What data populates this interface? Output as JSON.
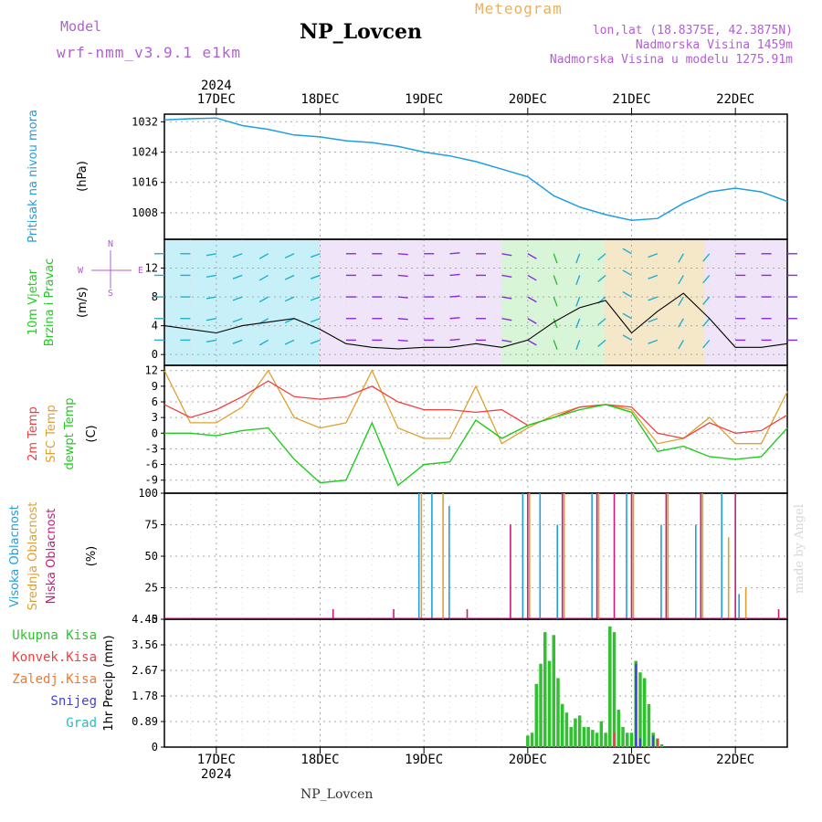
{
  "header": {
    "model_label": "Model",
    "model_name": "wrf-nmm_v3.9.1 e1km",
    "station": "NP_Lovcen",
    "product": "Meteogram",
    "lonlat": "lon,lat (18.8375E, 42.3875N)",
    "altitude": "Nadmorska Visina 1459m",
    "model_altitude": "Nadmorska Visina u modelu 1275.91m",
    "footer_station": "NP_Lovcen",
    "credit": "made by Angel"
  },
  "colors": {
    "pressure": "#1f9fe0",
    "temp2m": "#f04040",
    "sfc": "#e0a030",
    "dewpt": "#20cc20",
    "low_cloud": "#cc1a7a",
    "mid_cloud": "#e0a030",
    "high_cloud": "#1f9fe0",
    "precip_total": "#30c030",
    "precip_conv": "#f04040",
    "snow": "#4040e0"
  },
  "time_axis": {
    "year": "2024",
    "day_labels": [
      "17DEC",
      "18DEC",
      "19DEC",
      "20DEC",
      "21DEC",
      "22DEC"
    ],
    "start": "2024-12-16 12:00",
    "end": "2024-12-22 12:00"
  },
  "wind_compass": {
    "n": "N",
    "s": "S",
    "e": "E",
    "w": "W"
  },
  "chart_data": [
    {
      "type": "line",
      "panel": "pressure",
      "ylabel": [
        "Pritisak na nivou mora",
        "(hPa)"
      ],
      "yticks": [
        1008,
        1016,
        1024,
        1032
      ],
      "ylim": [
        1001,
        1034
      ],
      "grid": true,
      "series": [
        {
          "x": [
            "2024-12-16 12:00",
            "2024-12-16 18:00",
            "2024-12-17 00:00",
            "2024-12-17 06:00",
            "2024-12-17 12:00",
            "2024-12-17 18:00",
            "2024-12-18 00:00",
            "2024-12-18 06:00",
            "2024-12-18 12:00",
            "2024-12-18 18:00",
            "2024-12-19 00:00",
            "2024-12-19 06:00",
            "2024-12-19 12:00",
            "2024-12-19 18:00",
            "2024-12-20 00:00",
            "2024-12-20 06:00",
            "2024-12-20 12:00",
            "2024-12-20 18:00",
            "2024-12-21 00:00",
            "2024-12-21 06:00",
            "2024-12-21 12:00",
            "2024-12-21 18:00",
            "2024-12-22 00:00",
            "2024-12-22 06:00",
            "2024-12-22 12:00"
          ],
          "values": [
            1032.5,
            1032.8,
            1033.0,
            1031.0,
            1030.0,
            1028.5,
            1028.0,
            1027.0,
            1026.5,
            1025.5,
            1024.0,
            1023.0,
            1021.5,
            1019.5,
            1017.5,
            1012.5,
            1009.5,
            1007.5,
            1006.0,
            1006.5,
            1010.5,
            1013.5,
            1014.5,
            1013.5,
            1011.0
          ]
        }
      ]
    },
    {
      "type": "line",
      "panel": "wind",
      "ylabel": [
        "10m Vjetar",
        "Brzina i Pravac",
        "(m/s)"
      ],
      "yticks": [
        0,
        4,
        8,
        12
      ],
      "ylim": [
        -1.5,
        16
      ],
      "grid": true,
      "series": [
        {
          "name": "speed",
          "x": [
            "2024-12-16 12:00",
            "2024-12-16 18:00",
            "2024-12-17 00:00",
            "2024-12-17 06:00",
            "2024-12-17 12:00",
            "2024-12-17 18:00",
            "2024-12-18 00:00",
            "2024-12-18 06:00",
            "2024-12-18 12:00",
            "2024-12-18 18:00",
            "2024-12-19 00:00",
            "2024-12-19 06:00",
            "2024-12-19 12:00",
            "2024-12-19 18:00",
            "2024-12-20 00:00",
            "2024-12-20 06:00",
            "2024-12-20 12:00",
            "2024-12-20 18:00",
            "2024-12-21 00:00",
            "2024-12-21 06:00",
            "2024-12-21 12:00",
            "2024-12-21 18:00",
            "2024-12-22 00:00",
            "2024-12-22 06:00",
            "2024-12-22 12:00"
          ],
          "values": [
            4.0,
            3.5,
            3.0,
            4.0,
            4.5,
            5.0,
            3.5,
            1.5,
            1.0,
            0.8,
            1.0,
            1.0,
            1.5,
            1.0,
            2.0,
            4.5,
            6.5,
            7.5,
            3.0,
            6.0,
            8.5,
            5.0,
            1.0,
            1.0,
            1.5
          ]
        }
      ],
      "direction_deg": [
        270,
        270,
        260,
        250,
        240,
        245,
        250,
        90,
        90,
        95,
        90,
        85,
        90,
        100,
        120,
        160,
        200,
        230,
        300,
        250,
        210,
        220,
        90,
        90,
        90
      ]
    },
    {
      "type": "line",
      "panel": "temperature",
      "ylabel": [
        "2m Temp",
        "SFC Temp",
        "dewpt Temp",
        "(C)"
      ],
      "yticks": [
        -9,
        -6,
        -3,
        0,
        3,
        6,
        9,
        12
      ],
      "ylim": [
        -11.5,
        13
      ],
      "grid": true,
      "series": [
        {
          "name": "2m Temp",
          "x": [
            "2024-12-16 12:00",
            "2024-12-16 18:00",
            "2024-12-17 00:00",
            "2024-12-17 06:00",
            "2024-12-17 12:00",
            "2024-12-17 18:00",
            "2024-12-18 00:00",
            "2024-12-18 06:00",
            "2024-12-18 12:00",
            "2024-12-18 18:00",
            "2024-12-19 00:00",
            "2024-12-19 06:00",
            "2024-12-19 12:00",
            "2024-12-19 18:00",
            "2024-12-20 00:00",
            "2024-12-20 06:00",
            "2024-12-20 12:00",
            "2024-12-20 18:00",
            "2024-12-21 00:00",
            "2024-12-21 06:00",
            "2024-12-21 12:00",
            "2024-12-21 18:00",
            "2024-12-22 00:00",
            "2024-12-22 06:00",
            "2024-12-22 12:00"
          ],
          "values": [
            5.5,
            3.0,
            4.5,
            7.0,
            10.0,
            7.0,
            6.5,
            7.0,
            9.0,
            6.0,
            4.5,
            4.5,
            4.0,
            4.5,
            1.5,
            3.0,
            5.0,
            5.5,
            5.0,
            0.0,
            -1.0,
            2.0,
            0.0,
            0.5,
            3.5
          ]
        },
        {
          "name": "SFC Temp",
          "x": [
            "2024-12-16 12:00",
            "2024-12-16 18:00",
            "2024-12-17 00:00",
            "2024-12-17 06:00",
            "2024-12-17 12:00",
            "2024-12-17 18:00",
            "2024-12-18 00:00",
            "2024-12-18 06:00",
            "2024-12-18 12:00",
            "2024-12-18 18:00",
            "2024-12-19 00:00",
            "2024-12-19 06:00",
            "2024-12-19 12:00",
            "2024-12-19 18:00",
            "2024-12-20 00:00",
            "2024-12-20 06:00",
            "2024-12-20 12:00",
            "2024-12-20 18:00",
            "2024-12-21 00:00",
            "2024-12-21 06:00",
            "2024-12-21 12:00",
            "2024-12-21 18:00",
            "2024-12-22 00:00",
            "2024-12-22 06:00",
            "2024-12-22 12:00"
          ],
          "values": [
            12.0,
            2.0,
            2.0,
            5.0,
            12.0,
            3.0,
            1.0,
            2.0,
            12.0,
            1.0,
            -1.0,
            -1.0,
            9.0,
            -2.0,
            1.0,
            3.5,
            5.0,
            5.5,
            4.5,
            -2.0,
            -1.0,
            3.0,
            -2.0,
            -2.0,
            8.0
          ]
        },
        {
          "name": "dewpt Temp",
          "x": [
            "2024-12-16 12:00",
            "2024-12-16 18:00",
            "2024-12-17 00:00",
            "2024-12-17 06:00",
            "2024-12-17 12:00",
            "2024-12-17 18:00",
            "2024-12-18 00:00",
            "2024-12-18 06:00",
            "2024-12-18 12:00",
            "2024-12-18 18:00",
            "2024-12-19 00:00",
            "2024-12-19 06:00",
            "2024-12-19 12:00",
            "2024-12-19 18:00",
            "2024-12-20 00:00",
            "2024-12-20 06:00",
            "2024-12-20 12:00",
            "2024-12-20 18:00",
            "2024-12-21 00:00",
            "2024-12-21 06:00",
            "2024-12-21 12:00",
            "2024-12-21 18:00",
            "2024-12-22 00:00",
            "2024-12-22 06:00",
            "2024-12-22 12:00"
          ],
          "values": [
            0.0,
            0.0,
            -0.5,
            0.5,
            1.0,
            -5.0,
            -9.5,
            -9.0,
            2.0,
            -10.0,
            -6.0,
            -5.5,
            2.5,
            -1.0,
            1.5,
            3.0,
            4.5,
            5.5,
            4.0,
            -3.5,
            -2.5,
            -4.5,
            -5.0,
            -4.5,
            1.0
          ]
        }
      ]
    },
    {
      "type": "bar",
      "panel": "cloud",
      "ylabel": [
        "Visoka Oblacnost",
        "Srednja Oblacnost",
        "Niska Oblacnost",
        "(%)"
      ],
      "yticks": [
        0,
        25,
        50,
        75,
        100
      ],
      "ylim": [
        0,
        100
      ],
      "grid": true,
      "series": [
        {
          "name": "Niska Oblacnost",
          "x": [
            "2024-12-18 03:00",
            "2024-12-18 17:00",
            "2024-12-19 10:00",
            "2024-12-19 20:00",
            "2024-12-20 00:00",
            "2024-12-20 08:00",
            "2024-12-20 16:00",
            "2024-12-20 20:00",
            "2024-12-21 00:00",
            "2024-12-21 08:00",
            "2024-12-21 16:00",
            "2024-12-22 00:00",
            "2024-12-22 10:00"
          ],
          "values": [
            8,
            8,
            8,
            75,
            100,
            100,
            100,
            100,
            100,
            100,
            100,
            100,
            8
          ]
        },
        {
          "name": "Srednja Oblacnost",
          "x": [
            "2024-12-18 23:00",
            "2024-12-19 04:00",
            "2024-12-20 00:00",
            "2024-12-20 08:00",
            "2024-12-20 16:00",
            "2024-12-21 00:00",
            "2024-12-21 08:00",
            "2024-12-21 16:00",
            "2024-12-21 22:00",
            "2024-12-22 02:00"
          ],
          "values": [
            100,
            100,
            100,
            100,
            100,
            100,
            100,
            100,
            65,
            25
          ]
        },
        {
          "name": "Visoka Oblacnost",
          "x": [
            "2024-12-18 22:00",
            "2024-12-19 01:00",
            "2024-12-19 05:00",
            "2024-12-19 22:00",
            "2024-12-20 02:00",
            "2024-12-20 06:00",
            "2024-12-20 14:00",
            "2024-12-20 22:00",
            "2024-12-21 06:00",
            "2024-12-21 14:00",
            "2024-12-21 20:00",
            "2024-12-22 00:00"
          ],
          "values": [
            100,
            100,
            90,
            100,
            100,
            75,
            100,
            100,
            75,
            75,
            100,
            20
          ]
        }
      ]
    },
    {
      "type": "bar",
      "panel": "precipitation",
      "ylabel": [
        "1hr Precip (mm)"
      ],
      "legend": [
        "Ukupna Kisa",
        "Konvek.Kisa",
        "Zaledj.Kisa",
        "Snijeg",
        "Grad"
      ],
      "legend_colors": [
        "#30c030",
        "#f04040",
        "#f07830",
        "#4040e0",
        "#20c0c0"
      ],
      "yticks": [
        0,
        0.89,
        1.78,
        2.67,
        3.56,
        4.45
      ],
      "ylim": [
        0,
        4.45
      ],
      "grid": true,
      "x": [
        "2024-12-20 00:00",
        "2024-12-20 01:00",
        "2024-12-20 02:00",
        "2024-12-20 03:00",
        "2024-12-20 04:00",
        "2024-12-20 05:00",
        "2024-12-20 06:00",
        "2024-12-20 07:00",
        "2024-12-20 08:00",
        "2024-12-20 09:00",
        "2024-12-20 10:00",
        "2024-12-20 11:00",
        "2024-12-20 12:00",
        "2024-12-20 13:00",
        "2024-12-20 14:00",
        "2024-12-20 15:00",
        "2024-12-20 16:00",
        "2024-12-20 17:00",
        "2024-12-20 18:00",
        "2024-12-20 19:00",
        "2024-12-20 20:00",
        "2024-12-20 21:00",
        "2024-12-20 22:00",
        "2024-12-20 23:00",
        "2024-12-21 00:00",
        "2024-12-21 01:00",
        "2024-12-21 02:00",
        "2024-12-21 03:00",
        "2024-12-21 04:00",
        "2024-12-21 05:00",
        "2024-12-21 06:00",
        "2024-12-21 07:00"
      ],
      "series": [
        {
          "name": "Ukupna Kisa",
          "values": [
            0.4,
            0.5,
            2.2,
            2.9,
            4.0,
            3.0,
            3.9,
            2.4,
            1.5,
            1.2,
            0.7,
            1.0,
            1.1,
            0.7,
            0.7,
            0.6,
            0.5,
            0.9,
            0.5,
            4.2,
            4.0,
            1.3,
            0.7,
            0.5,
            0.5,
            3.0,
            2.6,
            2.4,
            1.5,
            0.5,
            0.3,
            0.1
          ]
        },
        {
          "name": "Konvek.Kisa",
          "values": [
            0,
            0,
            0,
            0,
            0,
            0,
            0,
            0,
            0,
            0,
            0,
            0,
            0,
            0,
            0,
            0,
            0,
            0,
            0,
            0,
            0.5,
            0,
            0,
            0,
            0,
            0.3,
            0.2,
            0,
            0,
            0.2,
            0.3,
            0
          ]
        },
        {
          "name": "Snijeg",
          "values": [
            0,
            0,
            0,
            0,
            0,
            0,
            0,
            0,
            0,
            0,
            0,
            0,
            0,
            0,
            0,
            0,
            0,
            0,
            0,
            0,
            0,
            0,
            0,
            0,
            0,
            2.9,
            0.3,
            0,
            0,
            0.4,
            0,
            0
          ]
        }
      ]
    }
  ]
}
